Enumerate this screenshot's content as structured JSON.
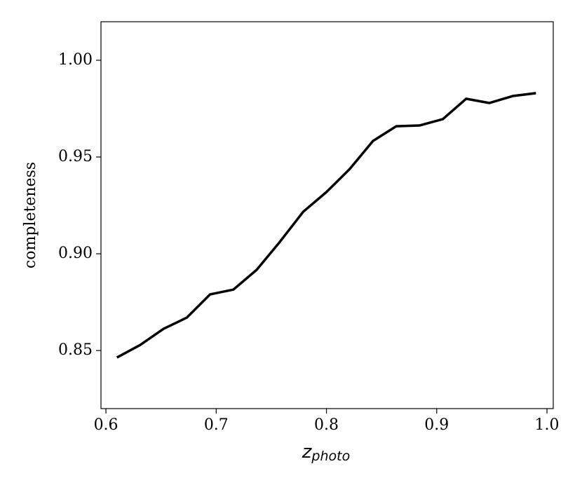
{
  "chart_data": {
    "type": "line",
    "x_label": "z",
    "x_label_subscript": "photo",
    "y_label": "completeness",
    "x": [
      0.61,
      0.6311,
      0.6522,
      0.6733,
      0.6944,
      0.7156,
      0.7367,
      0.7578,
      0.7789,
      0.8,
      0.8211,
      0.8422,
      0.8633,
      0.8844,
      0.9056,
      0.9267,
      0.9478,
      0.9689,
      0.99
    ],
    "series": [
      {
        "color": "#000000",
        "values": [
          0.8464,
          0.8529,
          0.8612,
          0.867,
          0.879,
          0.8815,
          0.8917,
          0.9062,
          0.9217,
          0.9319,
          0.9438,
          0.9583,
          0.9659,
          0.9663,
          0.9696,
          0.9801,
          0.9779,
          0.9815,
          0.983
        ]
      }
    ],
    "xlim": [
      0.5955,
      1.0057
    ],
    "xticks": [
      0.6,
      0.7,
      0.8,
      0.9,
      {
        "value": 1,
        "label": "1.0"
      }
    ],
    "ylim": [
      0.82,
      1.0199
    ],
    "yticks": [
      {
        "value": 0.85,
        "label": "0.85"
      },
      {
        "value": 0.9,
        "label": "0.90"
      },
      {
        "value": 0.95,
        "label": "0.95"
      },
      {
        "value": 1,
        "label": "1.00"
      }
    ],
    "grid": false
  }
}
